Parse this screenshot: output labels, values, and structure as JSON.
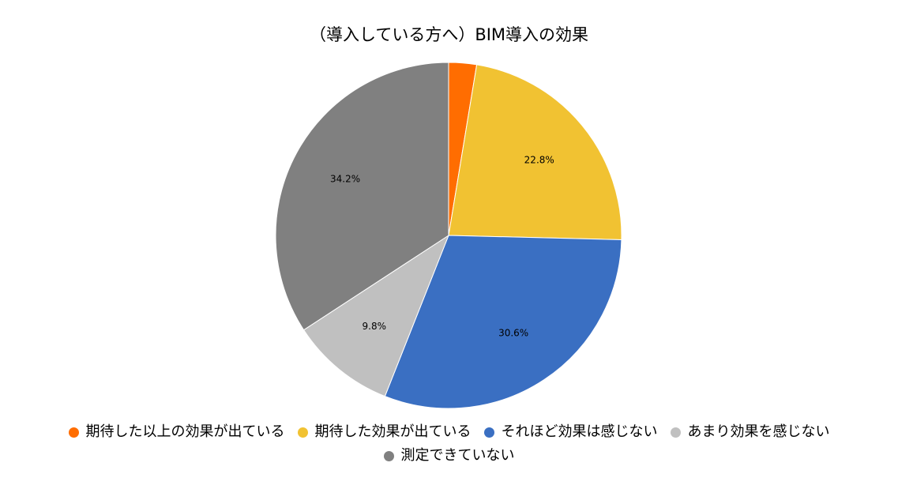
{
  "chart_data": {
    "type": "pie",
    "title": "（導入している方へ）BIM導入の効果",
    "slices": [
      {
        "name": "期待した以上の効果が出ている",
        "value": 2.6,
        "label": "",
        "color": "#FF6D01"
      },
      {
        "name": "期待した効果が出ている",
        "value": 22.8,
        "label": "22.8%",
        "color": "#F1C232"
      },
      {
        "name": "それほど効果は感じない",
        "value": 30.6,
        "label": "30.6%",
        "color": "#3A6FC2"
      },
      {
        "name": "あまり効果を感じない",
        "value": 9.8,
        "label": "9.8%",
        "color": "#C0C0C0"
      },
      {
        "name": "測定できていない",
        "value": 34.2,
        "label": "34.2%",
        "color": "#808080"
      }
    ],
    "start_angle": "12 o'clock",
    "direction": "clockwise",
    "legend_position": "bottom"
  }
}
